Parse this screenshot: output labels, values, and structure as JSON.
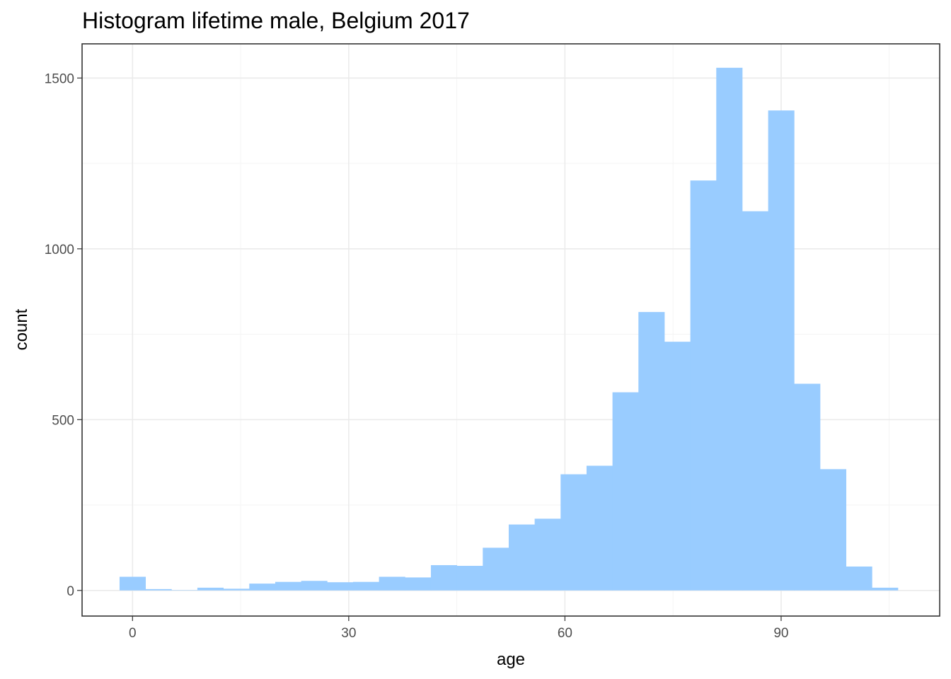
{
  "chart_data": {
    "type": "bar",
    "title": "Histogram lifetime male, Belgium 2017",
    "xlabel": "age",
    "ylabel": "count",
    "bin_width": 3.6,
    "bin_centers": [
      0,
      3.6,
      7.2,
      10.8,
      14.4,
      18,
      21.6,
      25.2,
      28.8,
      32.4,
      36,
      39.6,
      43.2,
      46.8,
      50.4,
      54,
      57.6,
      61.2,
      64.8,
      68.4,
      72,
      75.6,
      79.2,
      82.8,
      86.4,
      90,
      93.6,
      97.2,
      100.8,
      104.4
    ],
    "values": [
      40,
      4,
      1,
      8,
      5,
      20,
      25,
      28,
      24,
      25,
      40,
      38,
      74,
      72,
      125,
      193,
      210,
      340,
      365,
      580,
      815,
      728,
      1200,
      1530,
      1110,
      1405,
      605,
      355,
      70,
      8
    ],
    "xlim": [
      -7,
      112
    ],
    "ylim": [
      -75,
      1600
    ],
    "x_ticks": [
      0,
      30,
      60,
      90
    ],
    "y_ticks": [
      0,
      500,
      1000,
      1500
    ],
    "x_minor_ticks": [
      15,
      45,
      75,
      105
    ],
    "y_minor_ticks": [
      250,
      750,
      1250
    ],
    "bar_color": "#99ccff",
    "grid": true,
    "legend": "none"
  }
}
